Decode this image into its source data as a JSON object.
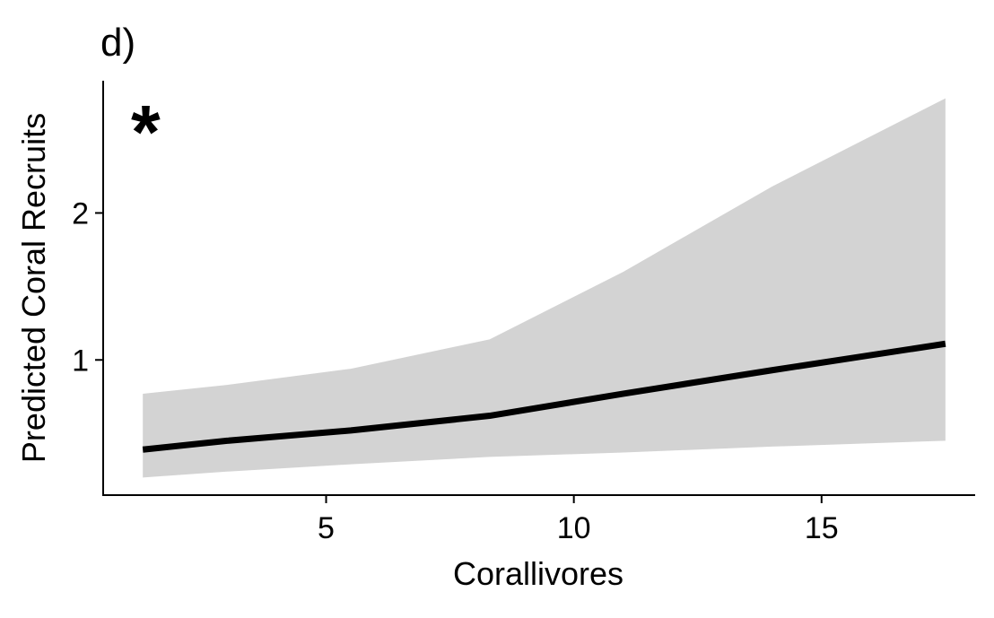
{
  "chart_data": {
    "type": "line",
    "panel_label": "d)",
    "significance_marker": "*",
    "xlabel": "Corallivores",
    "ylabel": "Predicted Coral Recruits",
    "xlim": [
      0.5,
      18.1
    ],
    "ylim": [
      0.08,
      2.9
    ],
    "x_ticks": [
      5,
      10,
      15
    ],
    "y_ticks": [
      1,
      2
    ],
    "grid": false,
    "legend": "none",
    "series": [
      {
        "name": "predicted",
        "x": [
          1.3,
          3.0,
          5.5,
          8.3,
          11.0,
          14.0,
          17.5
        ],
        "y": [
          0.39,
          0.45,
          0.52,
          0.62,
          0.77,
          0.93,
          1.11
        ]
      }
    ],
    "confidence_band": {
      "x": [
        1.3,
        3.0,
        5.5,
        8.3,
        11.0,
        14.0,
        17.5
      ],
      "lower": [
        0.2,
        0.24,
        0.29,
        0.34,
        0.37,
        0.41,
        0.45
      ],
      "upper": [
        0.77,
        0.83,
        0.94,
        1.14,
        1.6,
        2.18,
        2.78
      ]
    },
    "colors": {
      "line": "#000000",
      "band": "#d3d3d3",
      "axis": "#000000"
    }
  }
}
